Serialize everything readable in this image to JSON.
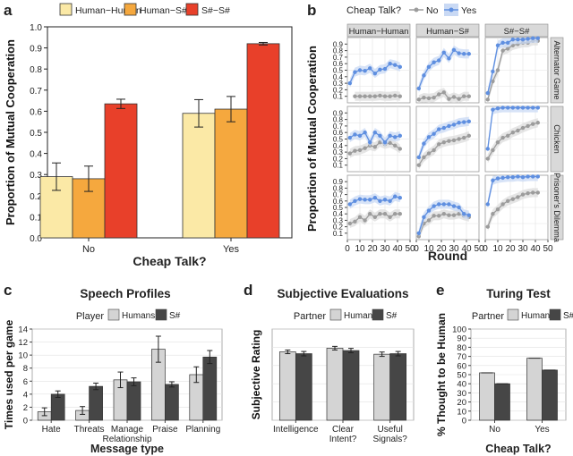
{
  "colors": {
    "hh": "#fbe9a6",
    "hs": "#f5a83e",
    "ss": "#e8402a",
    "no_line": "#9c9c9c",
    "yes_line": "#5f8fe0",
    "yes_band": "#c9d9f4",
    "no_band": "#dcdcdc",
    "humans": "#d4d4d4",
    "sharp": "#464646",
    "strip": "#d9d9d9",
    "grid": "#e2e2e2"
  },
  "chart_data": [
    {
      "panel": "a",
      "type": "bar",
      "panel_label": "a",
      "ylabel": "Proportion of Mutual Cooperation",
      "xlabel": "Cheap Talk?",
      "categories": [
        "No",
        "Yes"
      ],
      "ylim": [
        0,
        1.0
      ],
      "yticks": [
        "0.0",
        "0.1",
        "0.2",
        "0.3",
        "0.4",
        "0.5",
        "0.6",
        "0.7",
        "0.8",
        "0.9",
        "1.0"
      ],
      "legend": [
        "Human−Human",
        "Human−S#",
        "S#−S#"
      ],
      "series": [
        {
          "name": "Human−Human",
          "values": [
            0.29,
            0.59
          ],
          "errors": [
            0.065,
            0.065
          ]
        },
        {
          "name": "Human−S#",
          "values": [
            0.28,
            0.61
          ],
          "errors": [
            0.06,
            0.06
          ]
        },
        {
          "name": "S#−S#",
          "values": [
            0.635,
            0.92
          ],
          "errors": [
            0.022,
            0.006
          ]
        }
      ]
    },
    {
      "panel": "b",
      "type": "line",
      "panel_label": "b",
      "legend_title": "Cheap Talk?",
      "legend": [
        "No",
        "Yes"
      ],
      "ylabel": "Proportion of Mutual Cooperation",
      "xlabel": "Round",
      "xticks": [
        "0",
        "10",
        "20",
        "30",
        "40",
        "50"
      ],
      "yticks": [
        "0.1",
        "0.2",
        "0.3",
        "0.4",
        "0.5",
        "0.6",
        "0.7",
        "0.8",
        "0.9"
      ],
      "ylim": [
        0,
        1.0
      ],
      "cols": [
        "Human−Human",
        "Human−S#",
        "S#−S#"
      ],
      "rows": [
        "Alternator Game",
        "Chicken",
        "Prisoner's Dilemma"
      ],
      "x": [
        2,
        6,
        10,
        14,
        18,
        22,
        26,
        30,
        34,
        38,
        42
      ],
      "panels": [
        [
          {
            "no": [
              null,
              0.1,
              0.1,
              0.1,
              0.1,
              0.1,
              0.11,
              0.1,
              0.1,
              0.11,
              0.1
            ],
            "yes": [
              0.3,
              0.47,
              0.5,
              0.49,
              0.53,
              0.45,
              0.51,
              0.52,
              0.6,
              0.58,
              0.55
            ]
          },
          {
            "no": [
              0.05,
              0.08,
              0.07,
              0.08,
              0.13,
              0.16,
              0.06,
              0.09,
              0.06,
              0.1,
              0.1
            ],
            "yes": [
              0.22,
              0.42,
              0.55,
              0.62,
              0.65,
              0.77,
              0.68,
              0.81,
              0.76,
              0.75,
              0.75
            ]
          },
          {
            "no": [
              0.05,
              0.33,
              0.5,
              0.8,
              0.83,
              0.88,
              0.9,
              0.92,
              0.92,
              0.95,
              0.95
            ],
            "yes": [
              0.15,
              0.48,
              0.88,
              0.92,
              0.92,
              0.97,
              0.97,
              0.97,
              0.98,
              0.99,
              0.99
            ]
          }
        ],
        [
          {
            "no": [
              0.28,
              0.32,
              0.33,
              0.36,
              0.4,
              0.38,
              0.45,
              0.42,
              0.44,
              0.4,
              0.35
            ],
            "yes": [
              0.52,
              0.57,
              0.55,
              0.6,
              0.45,
              0.6,
              0.55,
              0.45,
              0.55,
              0.53,
              0.55
            ]
          },
          {
            "no": [
              0.1,
              0.22,
              0.28,
              0.33,
              0.42,
              0.45,
              0.47,
              0.48,
              0.5,
              0.52,
              0.55
            ],
            "yes": [
              0.22,
              0.43,
              0.53,
              0.58,
              0.65,
              0.67,
              0.7,
              0.72,
              0.75,
              0.76,
              0.77
            ]
          },
          {
            "no": [
              0.2,
              0.33,
              0.45,
              0.52,
              0.55,
              0.6,
              0.63,
              0.67,
              0.7,
              0.73,
              0.75
            ],
            "yes": [
              0.35,
              0.95,
              0.97,
              0.98,
              0.98,
              0.98,
              0.98,
              0.98,
              0.98,
              0.98,
              0.98
            ]
          }
        ],
        [
          {
            "no": [
              0.25,
              0.28,
              0.35,
              0.3,
              0.4,
              0.35,
              0.4,
              0.4,
              0.35,
              0.4,
              0.4
            ],
            "yes": [
              0.55,
              0.6,
              0.63,
              0.62,
              0.62,
              0.65,
              0.6,
              0.62,
              0.6,
              0.67,
              0.65
            ]
          },
          {
            "no": [
              0.05,
              0.25,
              0.3,
              0.37,
              0.37,
              0.4,
              0.38,
              0.38,
              0.4,
              0.37,
              0.35
            ],
            "yes": [
              0.1,
              0.35,
              0.45,
              0.52,
              0.55,
              0.55,
              0.55,
              0.52,
              0.5,
              0.4,
              0.38
            ]
          },
          {
            "no": [
              0.2,
              0.4,
              0.47,
              0.55,
              0.6,
              0.63,
              0.66,
              0.7,
              0.72,
              0.73,
              0.73
            ],
            "yes": [
              0.55,
              0.92,
              0.95,
              0.96,
              0.97,
              0.97,
              0.98,
              0.97,
              0.98,
              0.98,
              0.98
            ]
          }
        ]
      ]
    },
    {
      "panel": "c",
      "type": "bar",
      "panel_label": "c",
      "title": "Speech Profiles",
      "legend_title": "Player",
      "legend": [
        "Humans",
        "S#"
      ],
      "ylabel": "Times used per game",
      "xlabel": "Message type",
      "categories": [
        "Hate",
        "Threats",
        "Manage\nRelationship",
        "Praise",
        "Planning"
      ],
      "ylim": [
        0,
        14
      ],
      "yticks": [
        "0",
        "2",
        "4",
        "6",
        "8",
        "10",
        "12",
        "14"
      ],
      "series": [
        {
          "name": "Humans",
          "values": [
            1.3,
            1.5,
            6.2,
            10.9,
            7.0
          ],
          "errors": [
            0.6,
            0.6,
            1.2,
            2.0,
            1.2
          ]
        },
        {
          "name": "S#",
          "values": [
            4.0,
            5.2,
            5.9,
            5.5,
            9.7
          ],
          "errors": [
            0.5,
            0.5,
            0.6,
            0.4,
            1.0
          ]
        }
      ]
    },
    {
      "panel": "d",
      "type": "bar",
      "panel_label": "d",
      "title": "Subjective Evaluations",
      "legend_title": "Partner",
      "legend": [
        "Human",
        "S#"
      ],
      "ylabel": "Subjective Rating",
      "xlabel": "",
      "categories": [
        "Intelligence",
        "Clear\nIntent?",
        "Useful\nSignals?"
      ],
      "ylim": [
        0,
        5.0
      ],
      "series": [
        {
          "name": "Human",
          "values": [
            3.75,
            3.95,
            3.62
          ],
          "errors": [
            0.1,
            0.1,
            0.12
          ]
        },
        {
          "name": "S#",
          "values": [
            3.65,
            3.82,
            3.65
          ],
          "errors": [
            0.12,
            0.12,
            0.12
          ]
        }
      ]
    },
    {
      "panel": "e",
      "type": "bar",
      "panel_label": "e",
      "title": "Turing Test",
      "legend_title": "Partner",
      "legend": [
        "Human",
        "S#"
      ],
      "ylabel": "% Thought to be Human",
      "xlabel": "Cheap Talk?",
      "categories": [
        "No",
        "Yes"
      ],
      "ylim": [
        0,
        100
      ],
      "yticks": [
        "0",
        "10",
        "20",
        "30",
        "40",
        "50",
        "60",
        "70",
        "80",
        "90",
        "100"
      ],
      "series": [
        {
          "name": "Human",
          "values": [
            52,
            68
          ]
        },
        {
          "name": "S#",
          "values": [
            40,
            55
          ]
        }
      ]
    }
  ]
}
